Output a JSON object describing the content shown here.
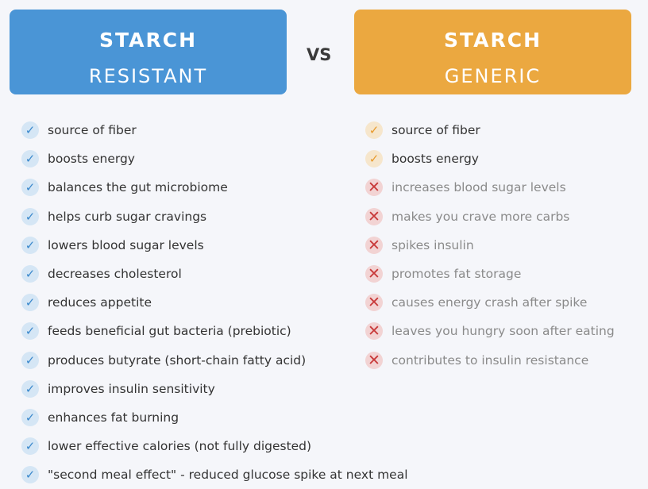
{
  "left": {
    "title": "STARCH",
    "subtitle": "RESISTANT",
    "color": "#4a95d6",
    "items": [
      "source of fiber",
      "boosts energy",
      "balances the gut microbiome",
      "helps curb sugar cravings",
      "lowers blood sugar levels",
      "decreases cholesterol",
      "reduces appetite",
      "feeds beneficial gut bacteria (prebiotic)",
      "produces butyrate (short-chain fatty acid)",
      "improves insulin sensitivity",
      "enhances fat burning",
      "lower effective calories (not fully digested)",
      "\"second meal effect\" - reduced glucose spike at next meal"
    ]
  },
  "vs": "VS",
  "right": {
    "title": "STARCH",
    "subtitle": "GENERIC",
    "color": "#eba840",
    "positives": [
      "source of fiber",
      "boosts energy"
    ],
    "negatives": [
      "increases blood sugar levels",
      "makes you crave more carbs",
      "spikes insulin",
      "promotes fat storage",
      "causes energy crash after spike",
      "leaves you hungry soon after eating",
      "contributes to insulin resistance"
    ]
  },
  "icons": {
    "positive": "check-icon",
    "negative": "x-icon"
  }
}
